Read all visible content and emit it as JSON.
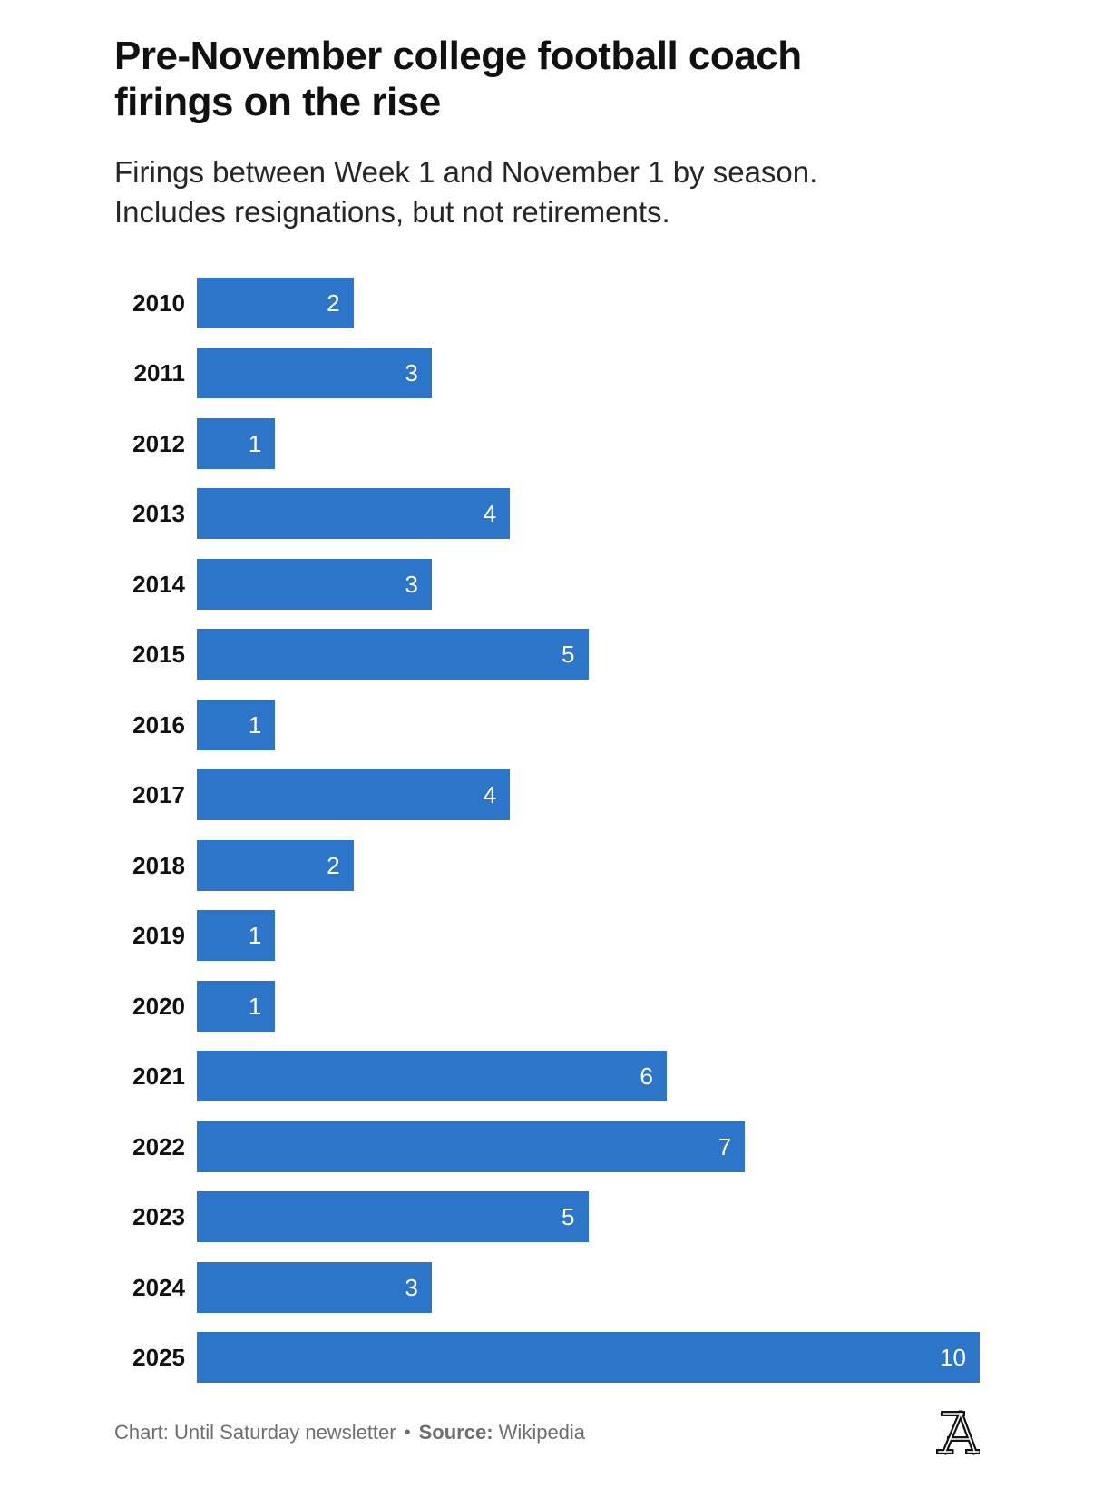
{
  "header": {
    "title_lines": [
      "Pre-November college football coach",
      "firings on the rise"
    ],
    "subtitle_lines": [
      "Firings between Week 1 and November 1 by season.",
      "Includes resignations, but not retirements."
    ]
  },
  "chart_data": {
    "type": "bar",
    "orientation": "horizontal",
    "title": "Pre-November college football coach firings on the rise",
    "subtitle": "Firings between Week 1 and November 1 by season. Includes resignations, but not retirements.",
    "categories": [
      "2010",
      "2011",
      "2012",
      "2013",
      "2014",
      "2015",
      "2016",
      "2017",
      "2018",
      "2019",
      "2020",
      "2021",
      "2022",
      "2023",
      "2024",
      "2025"
    ],
    "values": [
      2,
      3,
      1,
      4,
      3,
      5,
      1,
      4,
      2,
      1,
      1,
      6,
      7,
      5,
      3,
      10
    ],
    "xlabel": "",
    "ylabel": "",
    "xlim": [
      0,
      10
    ],
    "grid": false,
    "legend": false,
    "value_labels": "inside-end"
  },
  "footer": {
    "chart_label": "Chart:",
    "chart_value": "Until Saturday newsletter",
    "separator": "•",
    "source_label": "Source:",
    "source_value": "Wikipedia",
    "logo_name": "athletic-a-logo"
  },
  "colors": {
    "background": "#ffffff",
    "bar": "#2d75c9",
    "title": "#111111",
    "subtitle": "#262626",
    "year_label": "#111111",
    "value_label": "#ffffff",
    "footer_text": "#6e6e6e",
    "logo": "#131313"
  }
}
